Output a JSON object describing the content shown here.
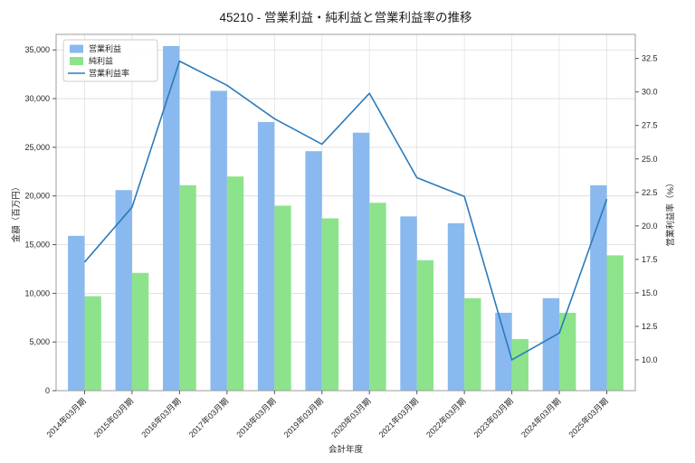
{
  "figure": {
    "background": "#ffffff",
    "text_color": "#262626",
    "grid_color": "#d9d9d9",
    "vgrid_color": "#e2e2e2",
    "spine_color": "#9e9e9e",
    "legend_border": "#cccccc"
  },
  "chart_data": {
    "type": "bar",
    "title": "45210 - 営業利益・純利益と営業利益率の推移",
    "xlabel": "会計年度",
    "ylabel_left": "金額（百万円）",
    "ylabel_right": "営業利益率（%）",
    "legend_position": "upper-left",
    "grid": true,
    "categories": [
      "2014年03月期",
      "2015年03月期",
      "2016年03月期",
      "2017年03月期",
      "2018年03月期",
      "2019年03月期",
      "2020年03月期",
      "2021年03月期",
      "2022年03月期",
      "2023年03月期",
      "2024年03月期",
      "2025年03月期"
    ],
    "series": [
      {
        "name": "営業利益",
        "type": "bar",
        "axis": "left",
        "color": "#89b9ef",
        "values": [
          15900,
          20600,
          35400,
          30800,
          27600,
          24600,
          26500,
          17900,
          17200,
          8000,
          9500,
          21100
        ]
      },
      {
        "name": "純利益",
        "type": "bar",
        "axis": "left",
        "color": "#8de38b",
        "values": [
          9700,
          12100,
          21100,
          22000,
          19000,
          17700,
          19300,
          13400,
          9500,
          5300,
          8000,
          13900
        ]
      },
      {
        "name": "営業利益率",
        "type": "line",
        "axis": "right",
        "color": "#2b7bba",
        "values": [
          17.3,
          21.4,
          32.3,
          30.5,
          28.0,
          26.1,
          29.9,
          23.6,
          22.2,
          10.0,
          12.0,
          22.0
        ]
      }
    ],
    "left_axis": {
      "lim": [
        0,
        36600
      ],
      "ticks": [
        0,
        5000,
        10000,
        15000,
        20000,
        25000,
        30000,
        35000
      ]
    },
    "right_axis": {
      "lim": [
        7.7,
        34.3
      ],
      "ticks": [
        10.0,
        12.5,
        15.0,
        17.5,
        20.0,
        22.5,
        25.0,
        27.5,
        30.0,
        32.5
      ]
    }
  }
}
